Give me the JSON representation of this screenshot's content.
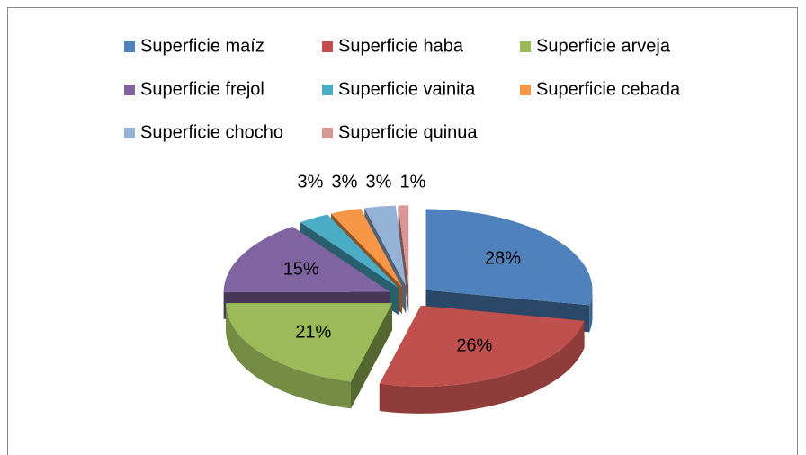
{
  "chart_data": {
    "type": "pie3d",
    "categories": [
      "Superficie maíz",
      "Superficie haba",
      "Superficie arveja",
      "Superficie frejol",
      "Superficie vainita",
      "Superficie cebada",
      "Superficie chocho",
      "Superficie quinua"
    ],
    "values": [
      28,
      26,
      21,
      15,
      3,
      3,
      3,
      1
    ],
    "value_labels": [
      "28%",
      "26%",
      "21%",
      "15%",
      "3%",
      "3%",
      "3%",
      "1%"
    ],
    "colors": [
      "#4f81bd",
      "#c0504d",
      "#9bbb59",
      "#8064a2",
      "#4bacc6",
      "#f79646",
      "#95b3d7",
      "#d99694"
    ],
    "legend": "top"
  }
}
